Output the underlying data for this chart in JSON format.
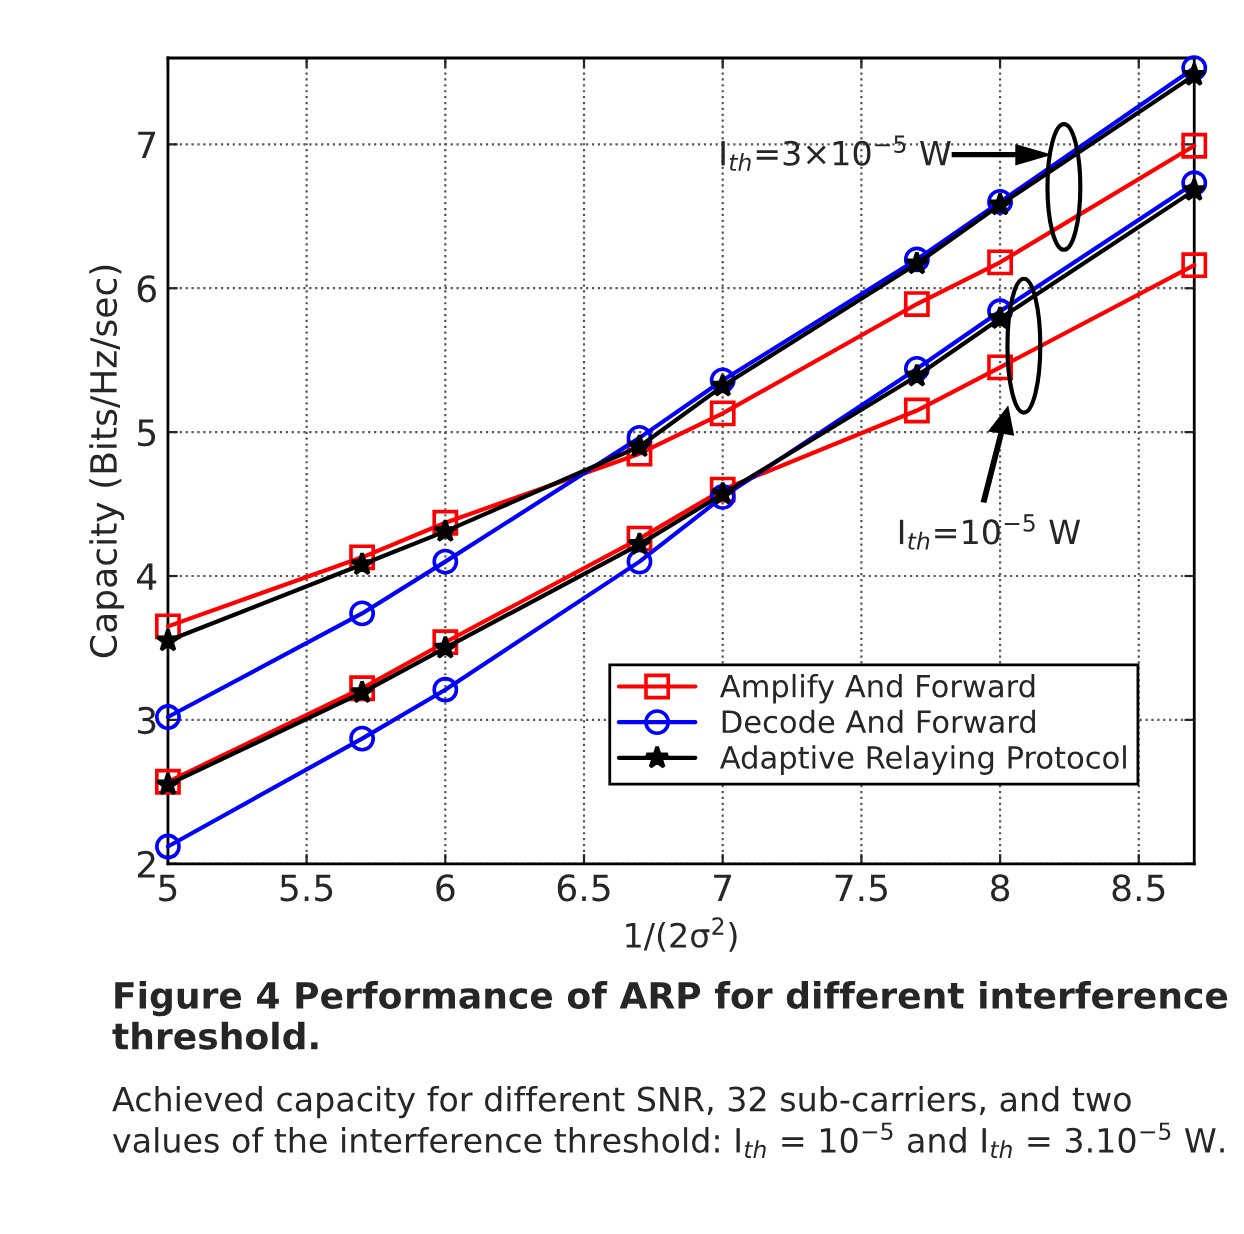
{
  "chart_data": {
    "type": "line",
    "title": "Figure 4 Performance of ARP for different interference threshold.",
    "xlabel": "1/(2σ$^{2}$)",
    "ylabel": "Capacity (Bits/Hz/sec)",
    "x": [
      5,
      5.7,
      6,
      6.7,
      7,
      7.7,
      8,
      8.7
    ],
    "series": [
      {
        "name": "Amplify And Forward",
        "color": "#ff0000",
        "marker": "square",
        "values": [
          3.65,
          4.13,
          4.37,
          4.85,
          5.13,
          5.89,
          6.18,
          6.99
        ]
      },
      {
        "color": "#ff0000",
        "marker": "square",
        "values": [
          2.57,
          3.22,
          3.54,
          4.26,
          4.6,
          5.15,
          5.45,
          6.16
        ]
      },
      {
        "name": "Decode And Forward",
        "color": "#0000ff",
        "marker": "circle",
        "values": [
          3.02,
          3.74,
          4.1,
          4.96,
          5.36,
          6.2,
          6.6,
          7.53
        ]
      },
      {
        "color": "#0000ff",
        "marker": "circle",
        "values": [
          2.12,
          2.87,
          3.21,
          4.1,
          4.55,
          5.44,
          5.84,
          6.73
        ]
      },
      {
        "name": "Adaptive Relaying Protocol",
        "color": "#000000",
        "marker": "star",
        "values": [
          3.55,
          4.08,
          4.31,
          4.9,
          5.32,
          6.17,
          6.58,
          7.48
        ]
      },
      {
        "color": "#000000",
        "marker": "star",
        "values": [
          2.55,
          3.19,
          3.5,
          4.22,
          4.57,
          5.39,
          5.79,
          6.68
        ]
      }
    ],
    "xlim": [
      5,
      8.7
    ],
    "xticks": [
      5,
      5.5,
      6,
      6.5,
      7,
      7.5,
      8,
      8.5
    ],
    "ylim": [
      2,
      7.6
    ],
    "yticks": [
      2,
      3,
      4,
      5,
      6,
      7
    ],
    "grid": true,
    "legend": "bottom right",
    "line_style": "solid",
    "annotations": [
      "I$_{th}$=3×10$^{−5}$ W",
      "I$_{th}$=10$^{−5}$ W",
      "Achieved capacity for different SNR, 32 sub-carriers, and two values of the interference threshold: I$_{th}$ = 10$^{−5}$ and I$_{th}$ = 3.10$^{−5}$ W."
    ]
  }
}
